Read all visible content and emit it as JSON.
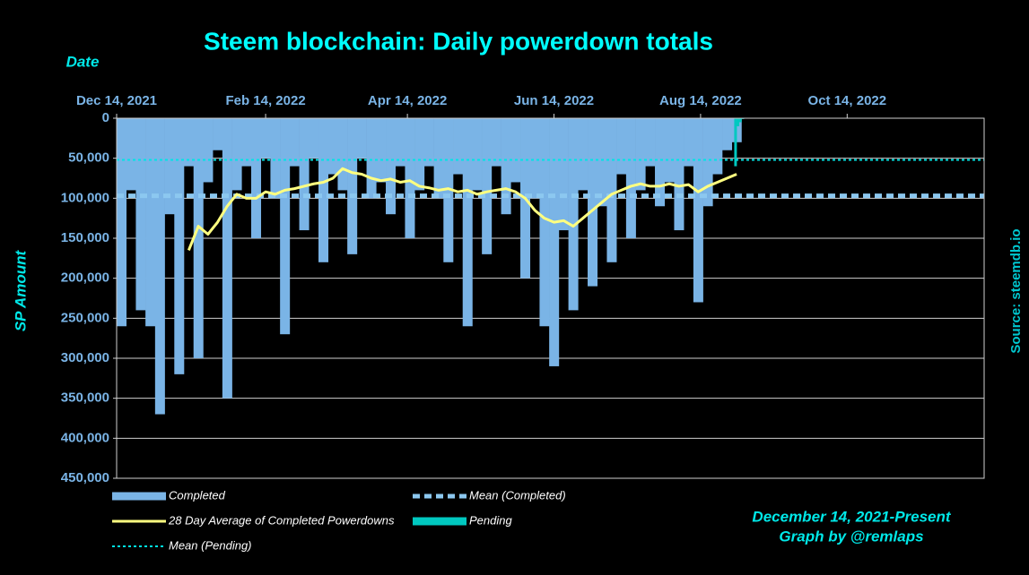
{
  "chart_data": {
    "type": "combo",
    "title": "Steem blockchain: Daily powerdown totals",
    "x_label": "Date",
    "y_label": "SP Amount",
    "source": "Source: steemdb.io",
    "footer": [
      "December 14, 2021-Present",
      "Graph by @remlaps"
    ],
    "y_inverted": true,
    "grid": true,
    "xlim": [
      "2021-12-14",
      "2022-12-10"
    ],
    "xticks": [
      {
        "value": "2021-12-14",
        "label": "Dec 14, 2021"
      },
      {
        "value": "2022-02-14",
        "label": "Feb 14, 2022"
      },
      {
        "value": "2022-04-14",
        "label": "Apr 14, 2022"
      },
      {
        "value": "2022-06-14",
        "label": "Jun 14, 2022"
      },
      {
        "value": "2022-08-14",
        "label": "Aug 14, 2022"
      },
      {
        "value": "2022-10-14",
        "label": "Oct 14, 2022"
      }
    ],
    "ylim": [
      0,
      450000
    ],
    "yticks": [
      0,
      {
        "value": 50000,
        "label": "50,000"
      },
      {
        "value": 100000,
        "label": "100,000"
      },
      {
        "value": 150000,
        "label": "150,000"
      },
      {
        "value": 200000,
        "label": "200,000"
      },
      {
        "value": 250000,
        "label": "250,000"
      },
      {
        "value": 300000,
        "label": "300,000"
      },
      {
        "value": 350000,
        "label": "350,000"
      },
      {
        "value": 400000,
        "label": "400,000"
      },
      {
        "value": 450000,
        "label": "450,000"
      }
    ],
    "x": [
      "2021-12-14",
      "2021-12-18",
      "2021-12-22",
      "2021-12-26",
      "2021-12-30",
      "2022-01-03",
      "2022-01-07",
      "2022-01-11",
      "2022-01-15",
      "2022-01-19",
      "2022-01-23",
      "2022-01-27",
      "2022-01-31",
      "2022-02-04",
      "2022-02-08",
      "2022-02-12",
      "2022-02-16",
      "2022-02-20",
      "2022-02-24",
      "2022-02-28",
      "2022-03-04",
      "2022-03-08",
      "2022-03-12",
      "2022-03-16",
      "2022-03-20",
      "2022-03-24",
      "2022-03-28",
      "2022-04-01",
      "2022-04-05",
      "2022-04-09",
      "2022-04-13",
      "2022-04-17",
      "2022-04-21",
      "2022-04-25",
      "2022-04-29",
      "2022-05-03",
      "2022-05-07",
      "2022-05-11",
      "2022-05-15",
      "2022-05-19",
      "2022-05-23",
      "2022-05-27",
      "2022-05-31",
      "2022-06-04",
      "2022-06-08",
      "2022-06-12",
      "2022-06-16",
      "2022-06-20",
      "2022-06-24",
      "2022-06-28",
      "2022-07-02",
      "2022-07-06",
      "2022-07-10",
      "2022-07-14",
      "2022-07-18",
      "2022-07-22",
      "2022-07-26",
      "2022-07-30",
      "2022-08-03",
      "2022-08-07",
      "2022-08-11",
      "2022-08-15",
      "2022-08-19",
      "2022-08-23",
      "2022-08-27"
    ],
    "series": [
      {
        "name": "Completed",
        "type": "bar",
        "color": "#7ab4e6",
        "values": [
          260000,
          90000,
          240000,
          260000,
          370000,
          120000,
          320000,
          60000,
          300000,
          80000,
          40000,
          350000,
          90000,
          60000,
          150000,
          50000,
          100000,
          270000,
          60000,
          140000,
          50000,
          180000,
          70000,
          90000,
          170000,
          50000,
          100000,
          80000,
          120000,
          60000,
          150000,
          90000,
          60000,
          100000,
          180000,
          70000,
          260000,
          90000,
          170000,
          60000,
          120000,
          80000,
          200000,
          100000,
          260000,
          310000,
          140000,
          240000,
          90000,
          210000,
          110000,
          180000,
          70000,
          150000,
          90000,
          60000,
          110000,
          80000,
          140000,
          60000,
          230000,
          110000,
          70000,
          40000,
          30000
        ]
      },
      {
        "name": "Mean (Completed)",
        "type": "hline",
        "color": "#8cc8f0",
        "line_style": "dashed",
        "value": 97000
      },
      {
        "name": "28 Day Average of Completed Powerdowns",
        "type": "line",
        "color": "#ffff80",
        "values": [
          null,
          null,
          null,
          null,
          null,
          null,
          null,
          165000,
          135000,
          145000,
          130000,
          110000,
          95000,
          100000,
          100000,
          92000,
          95000,
          90000,
          88000,
          85000,
          82000,
          80000,
          75000,
          63000,
          68000,
          70000,
          75000,
          78000,
          76000,
          80000,
          78000,
          85000,
          87000,
          90000,
          88000,
          92000,
          90000,
          95000,
          92000,
          90000,
          88000,
          92000,
          100000,
          115000,
          125000,
          130000,
          128000,
          135000,
          125000,
          115000,
          105000,
          95000,
          90000,
          85000,
          82000,
          85000,
          85000,
          82000,
          85000,
          83000,
          92000,
          85000,
          80000,
          75000,
          70000
        ]
      },
      {
        "name": "Pending",
        "type": "bar",
        "color": "#00c8c0",
        "x": [
          "2022-08-28",
          "2022-08-29",
          "2022-08-30",
          "2022-08-31"
        ],
        "values": [
          60000,
          10000,
          5000,
          1000
        ]
      },
      {
        "name": "Mean (Pending)",
        "type": "hline",
        "color": "#00e5e5",
        "line_style": "dotted",
        "value": 52000
      }
    ]
  }
}
